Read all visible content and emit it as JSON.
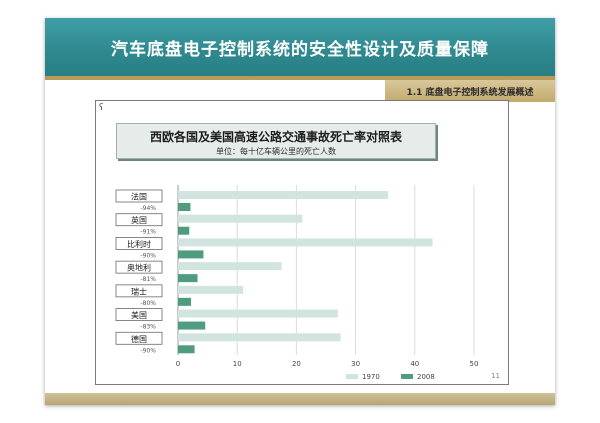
{
  "slide": {
    "title": "汽车底盘电子控制系统的安全性设计及质量保障",
    "section_tab": "1.1 底盘电子控制系统发展概述",
    "corner_mark": "ʕ",
    "page_number": "11"
  },
  "colors": {
    "title_band": "#2f8a90",
    "accent_gold": "#b59a5a",
    "series_1970": "#d2e4df",
    "series_2008": "#4f9c80"
  },
  "chart_data": {
    "type": "bar",
    "orientation": "horizontal",
    "title": "西欧各国及美国高速公路交通事故死亡率对照表",
    "subtitle": "单位：每十亿车辆公里的死亡人数",
    "categories": [
      "法国",
      "英国",
      "比利时",
      "奥地利",
      "瑞士",
      "美国",
      "德国"
    ],
    "reductions": [
      "-94%",
      "-91%",
      "-90%",
      "-81%",
      "-80%",
      "-83%",
      "-90%"
    ],
    "series": [
      {
        "name": "1970",
        "values": [
          35.5,
          21,
          43,
          17.5,
          11,
          27,
          27.5
        ]
      },
      {
        "name": "2008",
        "values": [
          2.1,
          1.9,
          4.3,
          3.3,
          2.2,
          4.6,
          2.8
        ]
      }
    ],
    "xlim": [
      0,
      50
    ],
    "xticks": [
      0,
      10,
      20,
      30,
      40,
      50
    ],
    "grid": true,
    "legend": "bottom-right"
  }
}
